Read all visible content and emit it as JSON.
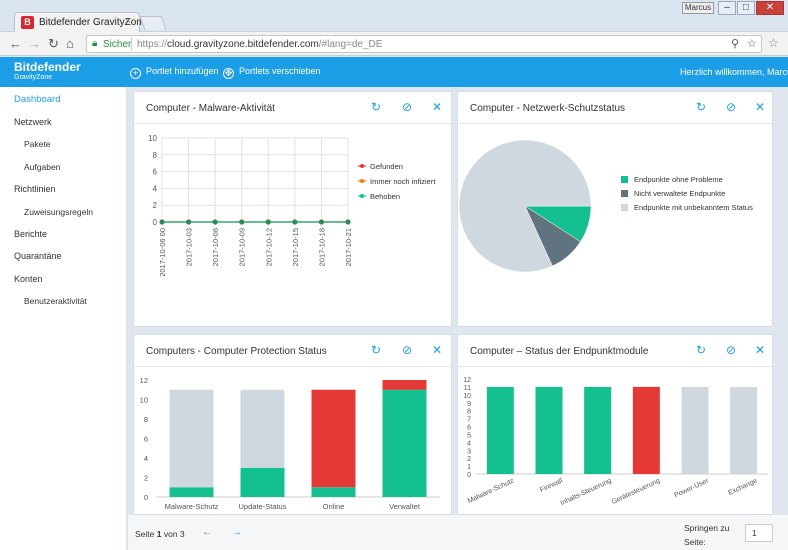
{
  "browser": {
    "tab_title": "Bitdefender GravityZone",
    "tab_logo": "B",
    "tab_close": "×",
    "user_badge": "Marcus",
    "win_min": "–",
    "win_max": "□",
    "win_close": "✕",
    "secure_label": "Sicher",
    "url_scheme": "https://",
    "url_host": "cloud.gravityzone.bitdefender.com",
    "url_path": "/#lang=de_DE",
    "icons": [
      "back-arrow-icon",
      "forward-arrow-icon",
      "reload-icon",
      "home-icon",
      "lock-icon",
      "zoom-icon",
      "star-icon"
    ]
  },
  "header": {
    "brand": "Bitdefender",
    "brand_sub": "GravityZone",
    "add_portlet": "Portlet hinzufügen",
    "move_portlets": "Portlets verschieben",
    "welcome": "Herzlich willkommen, Marcus",
    "accent": "#1c9ee6"
  },
  "sidebar": {
    "items": [
      {
        "label": "Dashboard",
        "active": true
      },
      {
        "label": "Netzwerk"
      },
      {
        "label": "Pakete",
        "sub": true
      },
      {
        "label": "Aufgaben",
        "sub": true
      },
      {
        "label": "Richtlinien"
      },
      {
        "label": "Zuweisungsregeln",
        "sub": true
      },
      {
        "label": "Berichte"
      },
      {
        "label": "Quarantäne"
      },
      {
        "label": "Konten"
      },
      {
        "label": "Benutzeraktivität",
        "sub": true
      }
    ]
  },
  "portlets": [
    {
      "title": "Computer - Malware-Aktivität"
    },
    {
      "title": "Computer - Netzwerk-Schutzstatus"
    },
    {
      "title": "Computers - Computer Protection Status"
    },
    {
      "title": "Computer – Status der Endpunktmodule"
    }
  ],
  "chart_data": [
    {
      "type": "line",
      "x": [
        "2017-10-06 00",
        "2017-10-03",
        "2017-10-06",
        "2017-10-09",
        "2017-10-12",
        "2017-10-15",
        "2017-10-18",
        "2017-10-21"
      ],
      "series": [
        {
          "name": "Gefunden",
          "values": [
            0,
            0,
            0,
            0,
            0,
            0,
            0,
            0
          ],
          "color": "#e53935"
        },
        {
          "name": "Immer noch infiziert",
          "values": [
            0,
            0,
            0,
            0,
            0,
            0,
            0,
            0
          ],
          "color": "#f57c00"
        },
        {
          "name": "Behoben",
          "values": [
            0,
            0,
            0,
            0,
            0,
            0,
            0,
            0
          ],
          "color": "#14c08f"
        }
      ],
      "ylim": [
        0,
        10
      ],
      "yticks": [
        0,
        2,
        4,
        6,
        8,
        10
      ],
      "grid": true,
      "legend": "right"
    },
    {
      "type": "pie",
      "slices": [
        {
          "label": "Endpunkte ohne Probleme",
          "value": 1,
          "color": "#14c08f"
        },
        {
          "label": "Nicht verwaltete Endpunkte",
          "value": 1,
          "color": "#607480"
        },
        {
          "label": "Endpunkte mit unbekanntem Status",
          "value": 9,
          "color": "#cfd8de"
        }
      ],
      "legend": "right"
    },
    {
      "type": "bar",
      "stacked": true,
      "categories": [
        "Malware-Schutz",
        "Update-Status",
        "Online",
        "Verwaltet"
      ],
      "series": [
        {
          "values": [
            1,
            3,
            1,
            11
          ],
          "color": "#14c08f"
        },
        {
          "values": [
            0,
            0,
            10,
            1
          ],
          "color": "#e53935"
        },
        {
          "values": [
            10,
            8,
            0,
            0
          ],
          "color": "#cfd8de"
        }
      ],
      "ylim": [
        0,
        12
      ],
      "yticks": [
        0,
        2,
        4,
        6,
        8,
        10,
        12
      ]
    },
    {
      "type": "bar",
      "categories": [
        "Malware-Schutz",
        "Firewall",
        "Inhalts-Steuerung",
        "Gerätesteuerung",
        "Power-User",
        "Exchange"
      ],
      "values": [
        11,
        11,
        11,
        11,
        11,
        11
      ],
      "colors": [
        "#14c08f",
        "#14c08f",
        "#14c08f",
        "#e53935",
        "#cfd8de",
        "#cfd8de"
      ],
      "ylim": [
        0,
        12
      ],
      "yticks": [
        0,
        1,
        2,
        3,
        4,
        5,
        6,
        7,
        8,
        9,
        10,
        11,
        12
      ]
    }
  ],
  "footer": {
    "page_prefix": "Seite",
    "page_current": "1",
    "page_suffix": "von 3",
    "prev": "←",
    "next": "→",
    "jump_label": "Springen zu Seite:",
    "jump_value": "1"
  }
}
